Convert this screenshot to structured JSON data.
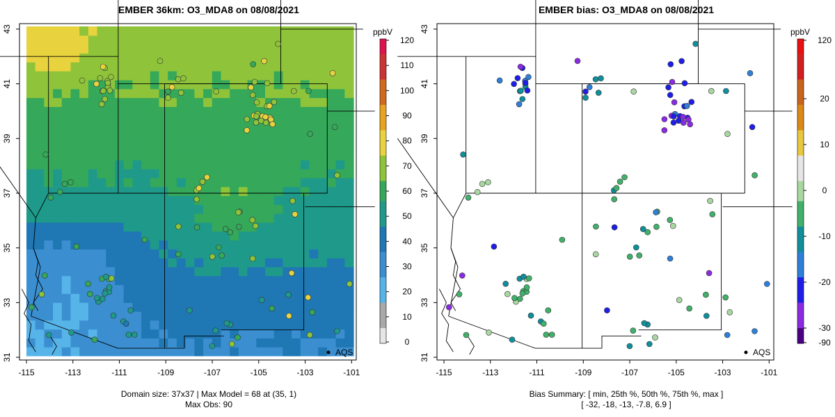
{
  "left": {
    "title": "EMBER 36km: O3_MDA8 on 08/08/2021",
    "colorbar_unit": "ppbV",
    "colorbar_ticks": [
      "0",
      "10",
      "20",
      "30",
      "40",
      "50",
      "60",
      "70",
      "80",
      "90",
      "100",
      "110",
      "120"
    ],
    "footer_line1": "Domain size: 37x37 | Max Model = 68 at (35, 1)",
    "footer_line2": "Max Obs: 90",
    "legend_label": "AQS"
  },
  "right": {
    "title": "EMBER bias: O3_MDA8 on 08/08/2021",
    "colorbar_unit": "ppbV",
    "colorbar_ticks": [
      "120",
      "20",
      "10",
      "0",
      "-10",
      "-20",
      "-30",
      "-90"
    ],
    "footer_line1": "Bias Summary: [ min, 25th %, 50th %, 75th %, max ]",
    "footer_line2": "[ -32,   -18,   -13,   -7.8,   6.9 ]",
    "legend_label": "AQS"
  },
  "axes": {
    "x_ticks": [
      "-115",
      "-113",
      "-111",
      "-109",
      "-107",
      "-105",
      "-103",
      "-101"
    ],
    "y_ticks": [
      "43",
      "41",
      "39",
      "37",
      "35",
      "33",
      "31"
    ],
    "xlim": [
      -115.3,
      -100.8
    ],
    "ylim": [
      30.9,
      43.2
    ]
  },
  "colors": {
    "model_scale": [
      "#e6e6e6",
      "#a9a9a9",
      "#56b4e9",
      "#3b8fd0",
      "#1f77b4",
      "#1f9a8a",
      "#35a85a",
      "#8fc43a",
      "#e8d33f",
      "#e8a321",
      "#d2691e",
      "#cc3333",
      "#e0144c"
    ],
    "bias_scale": [
      "#4b0082",
      "#8a2be2",
      "#1e1ee8",
      "#2f7fd8",
      "#0f8f9a",
      "#41b06a",
      "#a8d8a0",
      "#e6e6e6",
      "#e8c840",
      "#d98a18",
      "#c8641e",
      "#d22020",
      "#e81010"
    ],
    "land": "#ffffff",
    "border": "#000000"
  }
}
